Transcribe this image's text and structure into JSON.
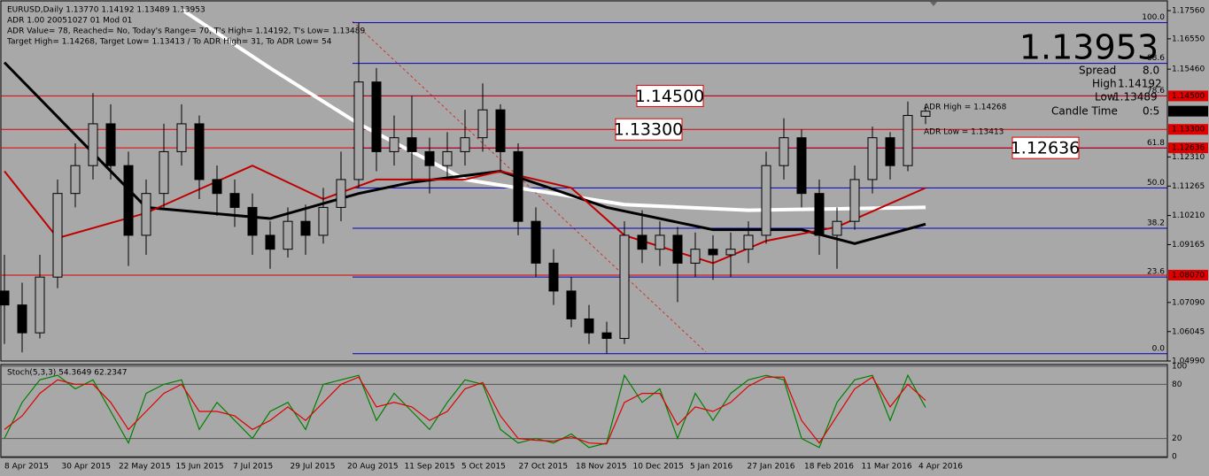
{
  "header": {
    "lines": [
      "EURUSD,Daily  1.13770 1.14192 1.13489 1.13953",
      "ADR 1.00 20051027 01 Mod 01",
      "ADR Value= 78, Reached= No, Today's Range= 70, T's High= 1.14192, T's Low= 1.13489",
      "Target High= 1.14268, Target Low= 1.13413 / To ADR High= 31, To ADR Low= 54"
    ]
  },
  "info_panel": {
    "spread_label": "Spread",
    "spread": "8.0",
    "high_label": "High",
    "high": "1.14192",
    "low_label": "Low",
    "low": "1.13489",
    "time_label": "Candle Time",
    "time": "0:5",
    "adr_high": "ADR High = 1.14268",
    "adr_low": "ADR Low = 1.13413"
  },
  "chart_data": [
    {
      "type": "candlestick",
      "x_labels": [
        "8 Apr 2015",
        "30 Apr 2015",
        "22 May 2015",
        "15 Jun 2015",
        "7 Jul 2015",
        "29 Jul 2015",
        "20 Aug 2015",
        "11 Sep 2015",
        "5 Oct 2015",
        "27 Oct 2015",
        "18 Nov 2015",
        "10 Dec 2015",
        "5 Jan 2016",
        "27 Jan 2016",
        "18 Feb 2016",
        "11 Mar 2016",
        "4 Apr 2016"
      ],
      "ylim": [
        1.0499,
        1.1791
      ],
      "yticks": [
        {
          "value": 1.1756,
          "label": "1.17560"
        },
        {
          "value": 1.1655,
          "label": "1.16550"
        },
        {
          "value": 1.1546,
          "label": "1.15460"
        },
        {
          "value": 1.1231,
          "label": "1.12310"
        },
        {
          "value": 1.11265,
          "label": "1.11265"
        },
        {
          "value": 1.1021,
          "label": "1.10210"
        },
        {
          "value": 1.09165,
          "label": "1.09165"
        },
        {
          "value": 1.0709,
          "label": "1.07090"
        },
        {
          "value": 1.06045,
          "label": "1.06045"
        },
        {
          "value": 1.0499,
          "label": "1.04990"
        }
      ],
      "open": [
        1.075,
        1.07,
        1.06,
        1.08,
        1.11,
        1.12,
        1.135,
        1.12,
        1.095,
        1.11,
        1.125,
        1.135,
        1.115,
        1.11,
        1.105,
        1.095,
        1.09,
        1.1,
        1.095,
        1.105,
        1.115,
        1.15,
        1.125,
        1.13,
        1.125,
        1.12,
        1.125,
        1.13,
        1.14,
        1.125,
        1.1,
        1.085,
        1.075,
        1.065,
        1.06,
        1.058,
        1.095,
        1.09,
        1.095,
        1.085,
        1.09,
        1.088,
        1.09,
        1.095,
        1.12,
        1.13,
        1.11,
        1.095,
        1.1,
        1.115,
        1.13,
        1.12,
        1.1377
      ],
      "high": [
        1.088,
        1.078,
        1.088,
        1.115,
        1.128,
        1.146,
        1.142,
        1.125,
        1.115,
        1.135,
        1.142,
        1.138,
        1.12,
        1.115,
        1.11,
        1.1,
        1.105,
        1.106,
        1.112,
        1.125,
        1.1715,
        1.155,
        1.138,
        1.145,
        1.13,
        1.132,
        1.14,
        1.1495,
        1.142,
        1.128,
        1.105,
        1.09,
        1.08,
        1.07,
        1.064,
        1.1,
        1.104,
        1.1,
        1.098,
        1.096,
        1.095,
        1.096,
        1.1,
        1.125,
        1.137,
        1.133,
        1.115,
        1.105,
        1.12,
        1.134,
        1.132,
        1.143,
        1.14192
      ],
      "low": [
        1.056,
        1.053,
        1.058,
        1.076,
        1.105,
        1.115,
        1.115,
        1.084,
        1.088,
        1.105,
        1.12,
        1.108,
        1.102,
        1.098,
        1.088,
        1.083,
        1.087,
        1.088,
        1.092,
        1.1,
        1.112,
        1.118,
        1.12,
        1.115,
        1.11,
        1.115,
        1.12,
        1.125,
        1.118,
        1.095,
        1.08,
        1.07,
        1.062,
        1.056,
        1.0525,
        1.056,
        1.085,
        1.084,
        1.071,
        1.08,
        1.079,
        1.08,
        1.085,
        1.092,
        1.115,
        1.105,
        1.088,
        1.083,
        1.097,
        1.11,
        1.115,
        1.118,
        1.13489
      ],
      "close": [
        1.07,
        1.06,
        1.08,
        1.11,
        1.12,
        1.135,
        1.12,
        1.095,
        1.11,
        1.125,
        1.135,
        1.115,
        1.11,
        1.105,
        1.095,
        1.09,
        1.1,
        1.095,
        1.105,
        1.115,
        1.15,
        1.125,
        1.13,
        1.125,
        1.12,
        1.125,
        1.13,
        1.14,
        1.125,
        1.1,
        1.085,
        1.075,
        1.065,
        1.06,
        1.058,
        1.095,
        1.09,
        1.095,
        1.085,
        1.09,
        1.088,
        1.09,
        1.095,
        1.12,
        1.13,
        1.11,
        1.095,
        1.1,
        1.115,
        1.13,
        1.12,
        1.138,
        1.13953
      ],
      "ma": [
        {
          "color": "#ffffff",
          "width": 4,
          "x": [
            10,
            15,
            20,
            26,
            35,
            42,
            47,
            52
          ],
          "values": [
            1.176,
            1.155,
            1.135,
            1.115,
            1.106,
            1.104,
            1.1045,
            1.105
          ]
        },
        {
          "color": "#000000",
          "width": 3,
          "x": [
            0,
            8,
            15,
            20,
            23,
            28,
            34,
            40,
            45,
            48,
            52
          ],
          "values": [
            1.157,
            1.105,
            1.101,
            1.11,
            1.114,
            1.118,
            1.105,
            1.097,
            1.097,
            1.092,
            1.099
          ]
        },
        {
          "color": "#c00000",
          "width": 2,
          "x": [
            0,
            3,
            8,
            14,
            18,
            21,
            26,
            28,
            32,
            35,
            40,
            43,
            47,
            52
          ],
          "values": [
            1.118,
            1.094,
            1.103,
            1.12,
            1.108,
            1.115,
            1.115,
            1.118,
            1.112,
            1.095,
            1.085,
            1.093,
            1.098,
            1.112
          ]
        }
      ],
      "fib_levels": [
        {
          "value": 1.1713,
          "label": "100.0"
        },
        {
          "value": 1.1567,
          "label": "88.6"
        },
        {
          "value": 1.145,
          "label": "78.6"
        },
        {
          "value": 1.1263,
          "label": "61.8"
        },
        {
          "value": 1.112,
          "label": "50.0"
        },
        {
          "value": 1.0975,
          "label": "38.2"
        },
        {
          "value": 1.08,
          "label": "23.6"
        },
        {
          "value": 1.0525,
          "label": "0.0"
        }
      ],
      "levels": [
        {
          "value": 1.145,
          "label": "1.14500"
        },
        {
          "value": 1.133,
          "label": "1.13300"
        },
        {
          "value": 1.12636,
          "label": "1.12636"
        },
        {
          "value": 1.0807,
          "label": "1.08070"
        }
      ],
      "last_price": {
        "value": 1.13953,
        "label": "1.13953"
      }
    },
    {
      "type": "line",
      "title": "Stoch(5,3,3) 54.3649 62.2347",
      "ylim": [
        0,
        100
      ],
      "yticks": [
        100,
        80,
        20,
        0
      ],
      "series": [
        {
          "color": "#008000",
          "values": [
            20,
            60,
            85,
            90,
            75,
            85,
            50,
            15,
            70,
            80,
            85,
            30,
            60,
            40,
            20,
            50,
            60,
            30,
            80,
            85,
            90,
            40,
            70,
            50,
            30,
            60,
            85,
            80,
            30,
            15,
            20,
            15,
            25,
            10,
            15,
            90,
            60,
            75,
            20,
            70,
            40,
            70,
            85,
            90,
            85,
            20,
            10,
            60,
            85,
            90,
            40,
            90,
            54.3649
          ]
        },
        {
          "color": "#e00000",
          "values": [
            30,
            45,
            70,
            85,
            80,
            80,
            60,
            30,
            50,
            70,
            80,
            50,
            50,
            45,
            30,
            40,
            55,
            40,
            60,
            80,
            88,
            55,
            60,
            55,
            40,
            50,
            75,
            82,
            45,
            20,
            18,
            17,
            22,
            15,
            14,
            60,
            70,
            70,
            35,
            55,
            50,
            60,
            78,
            88,
            88,
            40,
            15,
            45,
            75,
            88,
            55,
            80,
            62.2347
          ]
        }
      ]
    }
  ]
}
